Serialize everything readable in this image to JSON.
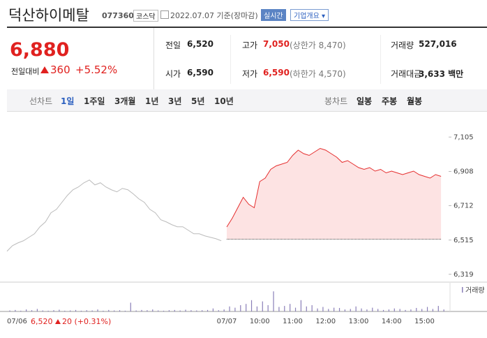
{
  "header": {
    "name": "덕산하이메탈",
    "code": "077360",
    "market": "코스닥",
    "date": "2022.07.07 기준(장마감)",
    "realtime": "실시간",
    "company": "기업개요"
  },
  "quote": {
    "price": "6,880",
    "change_label": "전일대비",
    "change": "360",
    "rate": "+5.52%"
  },
  "table": {
    "rows": [
      [
        [
          "전일",
          "6,520",
          null
        ],
        [
          "고가",
          "7,050",
          "(상한가 8,470)"
        ],
        [
          "거래량",
          "527,016",
          null
        ]
      ],
      [
        [
          "시가",
          "6,590",
          null
        ],
        [
          "저가",
          "6,590",
          "(하한가 4,570)"
        ],
        [
          "거래대금",
          "3,633 백만",
          null
        ]
      ]
    ]
  },
  "tabs": {
    "line_label": "선차트",
    "line_periods": [
      "1일",
      "1주일",
      "3개월",
      "1년",
      "3년",
      "5년",
      "10년"
    ],
    "candle_label": "봉차트",
    "candle_periods": [
      "일봉",
      "주봉",
      "월봉"
    ]
  },
  "footer": {
    "price": "6,520",
    "change": "20",
    "rate": "(+0.31%)"
  },
  "chart_data": [
    {
      "type": "line",
      "categories": [
        "07/06",
        null,
        null,
        null,
        null,
        null,
        null,
        null,
        null,
        null,
        null,
        null,
        null,
        null,
        null,
        null,
        null,
        null,
        null,
        null,
        null,
        null,
        null,
        null,
        null,
        null,
        null,
        null,
        null,
        null,
        null,
        null,
        null,
        null,
        null,
        null,
        null,
        null,
        null,
        null,
        "07/07",
        null,
        null,
        null,
        null,
        null,
        "10:00",
        null,
        null,
        null,
        null,
        null,
        "11:00",
        null,
        null,
        null,
        null,
        null,
        "12:00",
        null,
        null,
        null,
        null,
        null,
        "13:00",
        null,
        null,
        null,
        null,
        null,
        "14:00",
        null,
        null,
        null,
        null,
        null,
        "15:00",
        null,
        null,
        null
      ],
      "series": [
        {
          "color": "#bbbbbb",
          "values": [
            6451,
            6483,
            6499,
            6511,
            6531,
            6551,
            6591,
            6619,
            6671,
            6691,
            6731,
            6771,
            6803,
            6819,
            6843,
            6859,
            6831,
            6843,
            6819,
            6803,
            6791,
            6811,
            6803,
            6779,
            6751,
            6731,
            6691,
            6671,
            6631,
            6619,
            6603,
            6591,
            6591,
            6571,
            6551,
            6551,
            6539,
            6531,
            6523,
            6511,
            null,
            null,
            null,
            null,
            null,
            null,
            null,
            null,
            null,
            null,
            null,
            null,
            null,
            null,
            null,
            null,
            null,
            null,
            null,
            null,
            null,
            null,
            null,
            null,
            null,
            null,
            null,
            null,
            null,
            null,
            null,
            null,
            null,
            null,
            null,
            null,
            null,
            null,
            null,
            null
          ]
        },
        {
          "color": "#e52e2e",
          "fill": "#fde3e3",
          "values": [
            null,
            null,
            null,
            null,
            null,
            null,
            null,
            null,
            null,
            null,
            null,
            null,
            null,
            null,
            null,
            null,
            null,
            null,
            null,
            null,
            null,
            null,
            null,
            null,
            null,
            null,
            null,
            null,
            null,
            null,
            null,
            null,
            null,
            null,
            null,
            null,
            null,
            null,
            null,
            null,
            6590,
            6640,
            6700,
            6760,
            6720,
            6700,
            6850,
            6870,
            6920,
            6940,
            6950,
            6960,
            7000,
            7030,
            7010,
            7000,
            7020,
            7040,
            7030,
            7010,
            6990,
            6960,
            6970,
            6950,
            6930,
            6920,
            6930,
            6910,
            6920,
            6900,
            6910,
            6900,
            6890,
            6900,
            6910,
            6890,
            6880,
            6870,
            6890,
            6880
          ]
        }
      ],
      "baseline": 6520,
      "ylim": [
        6290,
        7170
      ],
      "yticks": [
        {
          "value": 6319,
          "label": "6,319"
        },
        {
          "value": 6515,
          "label": "6,515"
        },
        {
          "value": 6712,
          "label": "6,712"
        },
        {
          "value": 6908,
          "label": "6,908"
        },
        {
          "value": 7105,
          "label": "7,105"
        }
      ]
    },
    {
      "type": "bar",
      "label": "거래량",
      "color": "#8a7fb8",
      "values": [
        4,
        6,
        3,
        8,
        5,
        10,
        4,
        3,
        5,
        7,
        3,
        4,
        6,
        3,
        5,
        4,
        8,
        3,
        6,
        4,
        5,
        3,
        35,
        4,
        6,
        5,
        8,
        4,
        3,
        5,
        6,
        4,
        7,
        5,
        4,
        5,
        6,
        12,
        5,
        8,
        20,
        15,
        25,
        30,
        45,
        20,
        40,
        25,
        80,
        18,
        22,
        30,
        15,
        45,
        20,
        25,
        12,
        18,
        10,
        15,
        14,
        8,
        10,
        20,
        12,
        8,
        15,
        10,
        6,
        8,
        12,
        10,
        6,
        8,
        14,
        10,
        18,
        10,
        22,
        8
      ],
      "ylim": [
        0,
        100
      ]
    }
  ]
}
